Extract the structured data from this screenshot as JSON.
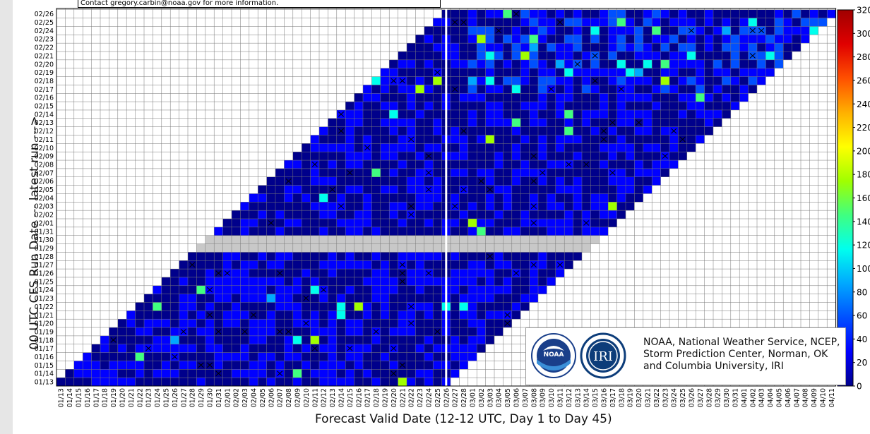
{
  "header": {
    "contact_text": "Contact gregory.carbin@noaa.gov for more information."
  },
  "axes": {
    "xlabel": "Forecast Valid Date (12-12 UTC, Day 1 to Day 45)",
    "ylabel": "00 UTC CFS Run Date --- latest run --->"
  },
  "credit": {
    "line1": "NOAA, National Weather Service, NCEP,",
    "line2": "Storm Prediction Center, Norman, OK",
    "line3": "and Columbia University, IRI"
  },
  "logos": {
    "noaa_text": "NOAA",
    "iri_text": "IRI"
  },
  "chart_data": {
    "type": "heatmap",
    "title": "",
    "xlabel": "Forecast Valid Date (12-12 UTC, Day 1 to Day 45)",
    "ylabel": "00 UTC CFS Run Date --- latest run --->",
    "x_categories": [
      "01/13",
      "01/14",
      "01/15",
      "01/16",
      "01/17",
      "01/18",
      "01/19",
      "01/20",
      "01/21",
      "01/22",
      "01/23",
      "01/24",
      "01/25",
      "01/26",
      "01/27",
      "01/28",
      "01/29",
      "01/30",
      "01/31",
      "02/01",
      "02/02",
      "02/03",
      "02/04",
      "02/05",
      "02/06",
      "02/07",
      "02/08",
      "02/09",
      "02/10",
      "02/11",
      "02/12",
      "02/13",
      "02/14",
      "02/15",
      "02/16",
      "02/17",
      "02/18",
      "02/19",
      "02/20",
      "02/21",
      "02/22",
      "02/23",
      "02/24",
      "02/25",
      "02/26",
      "02/27",
      "02/28",
      "03/01",
      "03/02",
      "03/03",
      "03/04",
      "03/05",
      "03/06",
      "03/07",
      "03/08",
      "03/09",
      "03/10",
      "03/11",
      "03/12",
      "03/13",
      "03/14",
      "03/15",
      "03/16",
      "03/17",
      "03/18",
      "03/19",
      "03/20",
      "03/21",
      "03/22",
      "03/23",
      "03/24",
      "03/25",
      "03/26",
      "03/27",
      "03/28",
      "03/29",
      "03/30",
      "03/31",
      "04/01",
      "04/02",
      "04/03",
      "04/04",
      "04/05",
      "04/06",
      "04/07",
      "04/08",
      "04/09",
      "04/10",
      "04/11"
    ],
    "y_categories": [
      "01/13",
      "01/14",
      "01/15",
      "01/16",
      "01/17",
      "01/18",
      "01/19",
      "01/20",
      "01/21",
      "01/22",
      "01/23",
      "01/24",
      "01/25",
      "01/26",
      "01/27",
      "01/28",
      "01/29",
      "01/30",
      "01/31",
      "02/01",
      "02/02",
      "02/03",
      "02/04",
      "02/05",
      "02/06",
      "02/07",
      "02/08",
      "02/09",
      "02/10",
      "02/11",
      "02/12",
      "02/13",
      "02/14",
      "02/15",
      "02/16",
      "02/17",
      "02/18",
      "02/19",
      "02/20",
      "02/21",
      "02/22",
      "02/23",
      "02/24",
      "02/25",
      "02/26"
    ],
    "missing_runs": [
      "01/29",
      "01/30"
    ],
    "forecast_length_days": 45,
    "current_date_marker": "02/26",
    "colorbar": {
      "ticks": [
        0,
        20,
        40,
        60,
        80,
        100,
        120,
        140,
        160,
        180,
        200,
        220,
        240,
        260,
        280,
        300,
        320
      ],
      "range": [
        0,
        320
      ],
      "colors": [
        "#00008b",
        "#0000ff",
        "#0050ff",
        "#00a8ff",
        "#00ffee",
        "#40ff80",
        "#a0ff00",
        "#ffff00",
        "#ffb000",
        "#ff5000",
        "#e00000",
        "#a00000"
      ]
    },
    "cell_value_note": "Each cell is one forecast-valid date from one daily run; dark blue cells are near 0, brighter blue through cyan and green mark higher values; an X marks highlighted days."
  }
}
